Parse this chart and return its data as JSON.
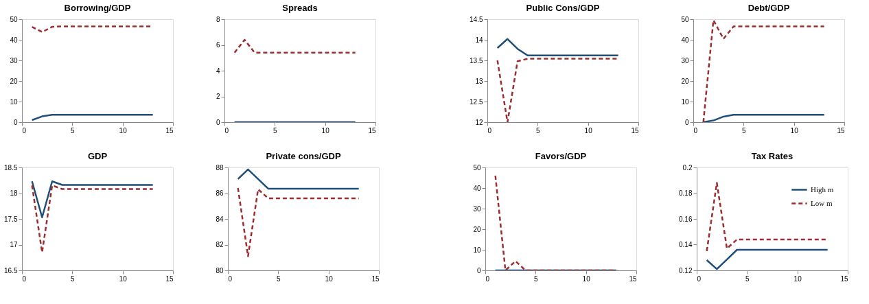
{
  "chart_data": [
    {
      "type": "line",
      "title": "Borrowing/GDP",
      "x": [
        1,
        2,
        3,
        4,
        5,
        6,
        7,
        8,
        9,
        10,
        11,
        12,
        13
      ],
      "xlim": [
        0,
        15
      ],
      "xticks": [
        0,
        5,
        10,
        15
      ],
      "ylim": [
        0,
        50
      ],
      "yticks": [
        0,
        10,
        20,
        30,
        40,
        50
      ],
      "grid": false,
      "legend": false,
      "series": [
        {
          "color": "#1f4e79",
          "line_style": "solid",
          "values": [
            1,
            2.8,
            3.6,
            3.6,
            3.6,
            3.6,
            3.6,
            3.6,
            3.6,
            3.6,
            3.6,
            3.6,
            3.6
          ]
        },
        {
          "color": "#9b2d30",
          "line_style": "dashed",
          "values": [
            46.3,
            43.8,
            46.3,
            46.5,
            46.5,
            46.5,
            46.5,
            46.5,
            46.5,
            46.5,
            46.5,
            46.5,
            46.5
          ]
        }
      ]
    },
    {
      "type": "line",
      "title": "Spreads",
      "x": [
        1,
        2,
        3,
        4,
        5,
        6,
        7,
        8,
        9,
        10,
        11,
        12,
        13
      ],
      "xlim": [
        0,
        15
      ],
      "xticks": [
        0,
        5,
        10,
        15
      ],
      "ylim": [
        0,
        8
      ],
      "yticks": [
        0,
        2,
        4,
        6,
        8
      ],
      "grid": false,
      "legend": false,
      "series": [
        {
          "color": "#1f4e79",
          "line_style": "solid",
          "values": [
            0,
            0,
            0,
            0,
            0,
            0,
            0,
            0,
            0,
            0,
            0,
            0,
            0
          ]
        },
        {
          "color": "#9b2d30",
          "line_style": "dashed",
          "values": [
            5.4,
            6.4,
            5.4,
            5.4,
            5.4,
            5.4,
            5.4,
            5.4,
            5.4,
            5.4,
            5.4,
            5.4,
            5.4
          ]
        }
      ]
    },
    {
      "type": "line",
      "title": "Public Cons/GDP",
      "x": [
        1,
        2,
        3,
        4,
        5,
        6,
        7,
        8,
        9,
        10,
        11,
        12,
        13
      ],
      "xlim": [
        0,
        15
      ],
      "xticks": [
        0,
        5,
        10,
        15
      ],
      "ylim": [
        12,
        14.5
      ],
      "yticks": [
        12,
        12.5,
        13,
        13.5,
        14,
        14.5
      ],
      "grid": false,
      "legend": false,
      "series": [
        {
          "color": "#1f4e79",
          "line_style": "solid",
          "values": [
            13.8,
            14.02,
            13.78,
            13.62,
            13.62,
            13.62,
            13.62,
            13.62,
            13.62,
            13.62,
            13.62,
            13.62,
            13.62
          ]
        },
        {
          "color": "#9b2d30",
          "line_style": "dashed",
          "values": [
            13.5,
            12.0,
            13.48,
            13.54,
            13.54,
            13.54,
            13.54,
            13.54,
            13.54,
            13.54,
            13.54,
            13.54,
            13.54
          ]
        }
      ]
    },
    {
      "type": "line",
      "title": "Debt/GDP",
      "x": [
        1,
        2,
        3,
        4,
        5,
        6,
        7,
        8,
        9,
        10,
        11,
        12,
        13
      ],
      "xlim": [
        0,
        15
      ],
      "xticks": [
        0,
        5,
        10,
        15
      ],
      "ylim": [
        0,
        50
      ],
      "yticks": [
        0,
        10,
        20,
        30,
        40,
        50
      ],
      "grid": false,
      "legend": false,
      "series": [
        {
          "color": "#1f4e79",
          "line_style": "solid",
          "values": [
            0,
            0.8,
            2.7,
            3.6,
            3.6,
            3.6,
            3.6,
            3.6,
            3.6,
            3.6,
            3.6,
            3.6,
            3.6
          ]
        },
        {
          "color": "#9b2d30",
          "line_style": "dashed",
          "values": [
            0,
            49.5,
            40.5,
            46.5,
            46.5,
            46.5,
            46.5,
            46.5,
            46.5,
            46.5,
            46.5,
            46.5,
            46.5
          ]
        }
      ]
    },
    {
      "type": "line",
      "title": "GDP",
      "x": [
        1,
        2,
        3,
        4,
        5,
        6,
        7,
        8,
        9,
        10,
        11,
        12,
        13
      ],
      "xlim": [
        0,
        15
      ],
      "xticks": [
        0,
        5,
        10,
        15
      ],
      "ylim": [
        16.5,
        18.5
      ],
      "yticks": [
        16.5,
        17,
        17.5,
        18,
        18.5
      ],
      "grid": false,
      "legend": false,
      "series": [
        {
          "color": "#1f4e79",
          "line_style": "solid",
          "values": [
            18.23,
            17.53,
            18.23,
            18.16,
            18.16,
            18.16,
            18.16,
            18.16,
            18.16,
            18.16,
            18.16,
            18.16,
            18.16
          ]
        },
        {
          "color": "#9b2d30",
          "line_style": "dashed",
          "values": [
            18.15,
            16.85,
            18.15,
            18.08,
            18.08,
            18.08,
            18.08,
            18.08,
            18.08,
            18.08,
            18.08,
            18.08,
            18.08
          ]
        }
      ]
    },
    {
      "type": "line",
      "title": "Private cons/GDP",
      "x": [
        1,
        2,
        3,
        4,
        5,
        6,
        7,
        8,
        9,
        10,
        11,
        12,
        13
      ],
      "xlim": [
        0,
        15
      ],
      "xticks": [
        0,
        5,
        10,
        15
      ],
      "ylim": [
        80,
        88
      ],
      "yticks": [
        80,
        82,
        84,
        86,
        88
      ],
      "grid": false,
      "legend": false,
      "series": [
        {
          "color": "#1f4e79",
          "line_style": "solid",
          "values": [
            87.1,
            87.85,
            87.1,
            86.35,
            86.35,
            86.35,
            86.35,
            86.35,
            86.35,
            86.35,
            86.35,
            86.35,
            86.35
          ]
        },
        {
          "color": "#9b2d30",
          "line_style": "dashed",
          "values": [
            86.4,
            81.1,
            86.3,
            85.6,
            85.6,
            85.6,
            85.6,
            85.6,
            85.6,
            85.6,
            85.6,
            85.6,
            85.6
          ]
        }
      ]
    },
    {
      "type": "line",
      "title": "Favors/GDP",
      "x": [
        1,
        2,
        3,
        4,
        5,
        6,
        7,
        8,
        9,
        10,
        11,
        12,
        13
      ],
      "xlim": [
        0,
        15
      ],
      "xticks": [
        0,
        5,
        10,
        15
      ],
      "ylim": [
        0,
        50
      ],
      "yticks": [
        0,
        10,
        20,
        30,
        40,
        50
      ],
      "grid": false,
      "legend": false,
      "series": [
        {
          "color": "#1f4e79",
          "line_style": "solid",
          "values": [
            0,
            0,
            0,
            0,
            0,
            0,
            0,
            0,
            0,
            0,
            0,
            0,
            0
          ]
        },
        {
          "color": "#9b2d30",
          "line_style": "dashed",
          "values": [
            46,
            0,
            4.5,
            0,
            0,
            0,
            0,
            0,
            0,
            0,
            0,
            0,
            0
          ]
        }
      ]
    },
    {
      "type": "line",
      "title": "Tax Rates",
      "x": [
        1,
        2,
        3,
        4,
        5,
        6,
        7,
        8,
        9,
        10,
        11,
        12,
        13
      ],
      "xlim": [
        0,
        15
      ],
      "xticks": [
        0,
        5,
        10,
        15
      ],
      "ylim": [
        0.12,
        0.2
      ],
      "yticks": [
        0.12,
        0.14,
        0.16,
        0.18,
        0.2
      ],
      "grid": false,
      "legend": "top right",
      "series": [
        {
          "name": "High m",
          "color": "#1f4e79",
          "line_style": "solid",
          "values": [
            0.128,
            0.121,
            0.1285,
            0.136,
            0.136,
            0.136,
            0.136,
            0.136,
            0.136,
            0.136,
            0.136,
            0.136,
            0.136
          ]
        },
        {
          "name": "Low m",
          "color": "#9b2d30",
          "line_style": "dashed",
          "values": [
            0.135,
            0.188,
            0.137,
            0.144,
            0.144,
            0.144,
            0.144,
            0.144,
            0.144,
            0.144,
            0.144,
            0.144,
            0.144
          ]
        }
      ]
    }
  ]
}
